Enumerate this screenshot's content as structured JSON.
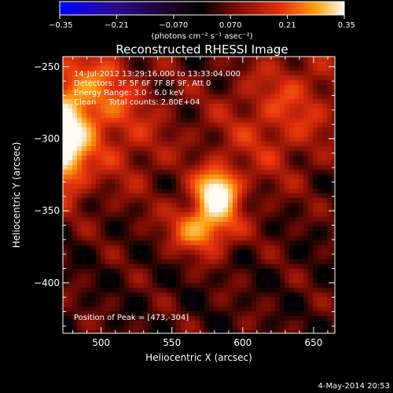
{
  "chart_data": {
    "type": "heatmap",
    "title": "Reconstructed RHESSI Image",
    "xlabel": "Heliocentric X (arcsec)",
    "ylabel": "Heliocentric Y (arcsec)",
    "xlim": [
      473,
      665
    ],
    "ylim": [
      -435,
      -243
    ],
    "x_ticks": [
      500,
      550,
      600,
      650
    ],
    "y_ticks": [
      -250,
      -300,
      -350,
      -400
    ],
    "colorbar": {
      "min": -0.35,
      "max": 0.35,
      "ticks": [
        "-0.35",
        "-0.21",
        "-0.070",
        "0.070",
        "0.21",
        "0.35"
      ],
      "unit_label": "(photons cm⁻² s⁻¹ asec⁻²)"
    },
    "annotations": [
      "14-Jul-2012 13:29:16.000 to 13:33:04.000",
      "Detectors: 3F 5F 6F 7F 8F 9F, Att 0",
      "Energy Range: 3.0 - 6.0 keV",
      "Clean     Total counts: 2.80E+04"
    ],
    "peak_label": "Position of Peak = [473,-304]",
    "sources": [
      {
        "x": 473,
        "y": -304,
        "sx": 12,
        "sy": 22,
        "amp": 0.33
      },
      {
        "x": 582,
        "y": -337,
        "sx": 10,
        "sy": 11,
        "amp": 0.32
      },
      {
        "x": 572,
        "y": -362,
        "sx": 16,
        "sy": 12,
        "amp": 0.22
      },
      {
        "x": 490,
        "y": -265,
        "sx": 22,
        "sy": 22,
        "amp": 0.14
      },
      {
        "x": 515,
        "y": -300,
        "sx": 25,
        "sy": 30,
        "amp": 0.08
      },
      {
        "x": 640,
        "y": -270,
        "sx": 25,
        "sy": 25,
        "amp": 0.08
      },
      {
        "x": 610,
        "y": -300,
        "sx": 30,
        "sy": 30,
        "amp": 0.07
      }
    ]
  },
  "timestamp": "4-May-2014 20:53"
}
